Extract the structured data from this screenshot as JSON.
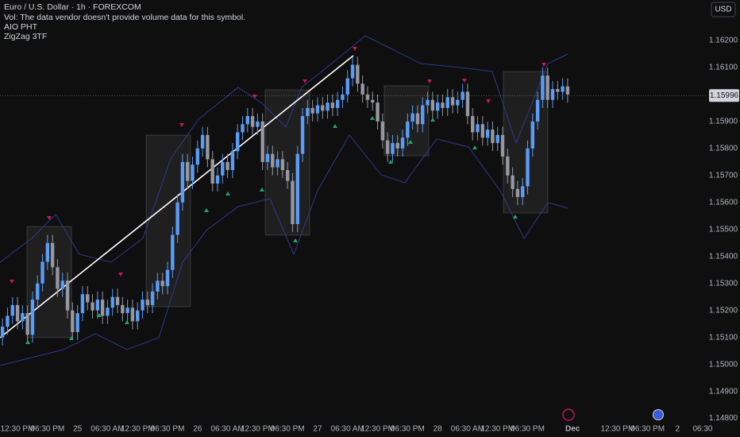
{
  "chart_data": {
    "type": "candlestick",
    "title": "Euro / U.S. Dollar · 1h · FOREXCOM",
    "subtitle": "Vol: The data vendor doesn't provide volume data for this symbol.",
    "indicators": [
      "AIO PHT",
      "ZigZag 3TF"
    ],
    "currency": "USD",
    "up_color": "#5b9cf6",
    "down_color": "#9598a1",
    "open": [
      1.151,
      1.1514,
      1.1518,
      1.1522,
      1.1516,
      1.1519,
      1.1511,
      1.1524,
      1.153,
      1.1538,
      1.1545,
      1.1536,
      1.1528,
      1.1531,
      1.152,
      1.1512,
      1.1519,
      1.1526,
      1.1523,
      1.152,
      1.1524,
      1.1518,
      1.1521,
      1.1525,
      1.1522,
      1.1519,
      1.1521,
      1.1516,
      1.152,
      1.1524,
      1.1522,
      1.1527,
      1.1531,
      1.1529,
      1.1535,
      1.1548,
      1.156,
      1.1575,
      1.1568,
      1.1574,
      1.158,
      1.1585,
      1.1576,
      1.1567,
      1.157,
      1.1575,
      1.1572,
      1.1579,
      1.1586,
      1.1589,
      1.1592,
      1.1588,
      1.159,
      1.1575,
      1.1578,
      1.1573,
      1.1576,
      1.1572,
      1.1568,
      1.1552,
      1.1578,
      1.1592,
      1.1595,
      1.1593,
      1.1596,
      1.1594,
      1.1597,
      1.1595,
      1.1598,
      1.16,
      1.1606,
      1.1611,
      1.1604,
      1.16,
      1.1598,
      1.1597,
      1.159,
      1.1583,
      1.1578,
      1.1582,
      1.158,
      1.1584,
      1.159,
      1.1593,
      1.1589,
      1.1596,
      1.1598,
      1.1594,
      1.1597,
      1.1595,
      1.1599,
      1.1596,
      1.1598,
      1.1601,
      1.1592,
      1.1586,
      1.1589,
      1.1584,
      1.1587,
      1.1582,
      1.1585,
      1.1577,
      1.157,
      1.1565,
      1.1562,
      1.1566,
      1.158,
      1.159,
      1.1598,
      1.1607,
      1.1598,
      1.1602,
      1.1601,
      1.1603
    ],
    "high": [
      1.1517,
      1.1521,
      1.1525,
      1.1525,
      1.1522,
      1.1522,
      1.1527,
      1.1533,
      1.1541,
      1.1548,
      1.1548,
      1.1539,
      1.1534,
      1.1534,
      1.1523,
      1.1522,
      1.1529,
      1.1529,
      1.1526,
      1.1527,
      1.1527,
      1.1524,
      1.1528,
      1.1528,
      1.1525,
      1.1524,
      1.1524,
      1.1523,
      1.1527,
      1.1527,
      1.153,
      1.1534,
      1.1534,
      1.1538,
      1.1551,
      1.1563,
      1.1578,
      1.1578,
      1.1577,
      1.1583,
      1.1588,
      1.1588,
      1.1579,
      1.1573,
      1.1578,
      1.1578,
      1.1582,
      1.1589,
      1.1592,
      1.1595,
      1.1595,
      1.1593,
      1.1593,
      1.1581,
      1.1581,
      1.1579,
      1.1579,
      1.1575,
      1.1571,
      1.1581,
      1.1595,
      1.1598,
      1.1598,
      1.1599,
      1.1599,
      1.16,
      1.16,
      1.1601,
      1.1603,
      1.1609,
      1.1614,
      1.1614,
      1.1607,
      1.1603,
      1.1601,
      1.16,
      1.1593,
      1.1586,
      1.1585,
      1.1585,
      1.1587,
      1.1593,
      1.1596,
      1.1596,
      1.1599,
      1.1601,
      1.1601,
      1.16,
      1.16,
      1.1602,
      1.1602,
      1.1601,
      1.1604,
      1.1604,
      1.1595,
      1.1592,
      1.1592,
      1.159,
      1.159,
      1.1588,
      1.1588,
      1.158,
      1.1573,
      1.1568,
      1.1569,
      1.1583,
      1.1593,
      1.1601,
      1.161,
      1.161,
      1.1605,
      1.1605,
      1.1606,
      1.1606
    ],
    "low": [
      1.1507,
      1.1511,
      1.1515,
      1.1513,
      1.1513,
      1.1508,
      1.1508,
      1.1521,
      1.1527,
      1.1535,
      1.1533,
      1.1525,
      1.1525,
      1.1517,
      1.1509,
      1.1509,
      1.1516,
      1.152,
      1.1517,
      1.1517,
      1.1515,
      1.1515,
      1.1518,
      1.1519,
      1.1516,
      1.1516,
      1.1513,
      1.1513,
      1.1517,
      1.1519,
      1.1519,
      1.1524,
      1.1526,
      1.1526,
      1.1532,
      1.1545,
      1.1557,
      1.1565,
      1.1565,
      1.1571,
      1.1577,
      1.1573,
      1.1564,
      1.1564,
      1.1567,
      1.1569,
      1.1569,
      1.1576,
      1.1583,
      1.1586,
      1.1585,
      1.1585,
      1.1572,
      1.1572,
      1.157,
      1.157,
      1.1569,
      1.1565,
      1.1549,
      1.1549,
      1.1575,
      1.1589,
      1.159,
      1.159,
      1.1591,
      1.1591,
      1.1592,
      1.1592,
      1.1595,
      1.1597,
      1.1603,
      1.1601,
      1.1597,
      1.1595,
      1.1594,
      1.1587,
      1.158,
      1.1575,
      1.1575,
      1.1577,
      1.1577,
      1.1581,
      1.1587,
      1.1586,
      1.1586,
      1.1593,
      1.1591,
      1.1591,
      1.1592,
      1.1592,
      1.1593,
      1.1593,
      1.1595,
      1.1589,
      1.1583,
      1.1583,
      1.1581,
      1.1581,
      1.1579,
      1.1579,
      1.1574,
      1.1567,
      1.1562,
      1.1559,
      1.1559,
      1.1563,
      1.1577,
      1.1587,
      1.1595,
      1.1595,
      1.1595,
      1.1598,
      1.1598,
      1.1597
    ],
    "close": [
      1.1514,
      1.1518,
      1.1522,
      1.1516,
      1.1519,
      1.1511,
      1.1524,
      1.153,
      1.1538,
      1.1545,
      1.1536,
      1.1528,
      1.1531,
      1.152,
      1.1512,
      1.1519,
      1.1526,
      1.1523,
      1.152,
      1.1524,
      1.1518,
      1.1521,
      1.1525,
      1.1522,
      1.1519,
      1.1521,
      1.1516,
      1.152,
      1.1524,
      1.1522,
      1.1527,
      1.1531,
      1.1529,
      1.1535,
      1.1548,
      1.156,
      1.1575,
      1.1568,
      1.1574,
      1.158,
      1.1585,
      1.1576,
      1.1567,
      1.157,
      1.1575,
      1.1572,
      1.1579,
      1.1586,
      1.1589,
      1.1592,
      1.1588,
      1.159,
      1.1575,
      1.1578,
      1.1573,
      1.1576,
      1.1572,
      1.1568,
      1.1552,
      1.1578,
      1.1592,
      1.1595,
      1.1593,
      1.1596,
      1.1594,
      1.1597,
      1.1595,
      1.1598,
      1.16,
      1.1606,
      1.1611,
      1.1604,
      1.16,
      1.1598,
      1.1597,
      1.159,
      1.1583,
      1.1578,
      1.1582,
      1.158,
      1.1584,
      1.159,
      1.1593,
      1.1589,
      1.1596,
      1.1598,
      1.1594,
      1.1597,
      1.1595,
      1.1599,
      1.1596,
      1.1598,
      1.1601,
      1.1592,
      1.1586,
      1.1589,
      1.1584,
      1.1587,
      1.1582,
      1.1585,
      1.1577,
      1.157,
      1.1565,
      1.1562,
      1.1566,
      1.158,
      1.159,
      1.1598,
      1.1607,
      1.1598,
      1.1602,
      1.1601,
      1.1603,
      1.16
    ],
    "xlim": [
      -0.5,
      140.8
    ],
    "xticks": [
      {
        "value": 3,
        "label": "12:30 PM"
      },
      {
        "value": 9,
        "label": "06:30 PM"
      },
      {
        "value": 15,
        "label": "25"
      },
      {
        "value": 21,
        "label": "06:30 AM"
      },
      {
        "value": 27,
        "label": "12:30 PM"
      },
      {
        "value": 33,
        "label": "06:30 PM"
      },
      {
        "value": 39,
        "label": "26"
      },
      {
        "value": 45,
        "label": "06:30 AM"
      },
      {
        "value": 51,
        "label": "12:30 PM"
      },
      {
        "value": 57,
        "label": "06:30 PM"
      },
      {
        "value": 63,
        "label": "27"
      },
      {
        "value": 69,
        "label": "06:30 AM"
      },
      {
        "value": 75,
        "label": "12:30 PM"
      },
      {
        "value": 81,
        "label": "06:30 PM"
      },
      {
        "value": 87,
        "label": "28"
      },
      {
        "value": 93,
        "label": "06:30 AM"
      },
      {
        "value": 99,
        "label": "12:30 PM"
      },
      {
        "value": 105,
        "label": "06:30 PM"
      },
      {
        "value": 114,
        "label": "Dec"
      },
      {
        "value": 123,
        "label": "12:30 PM"
      },
      {
        "value": 129,
        "label": "06:30 PM"
      },
      {
        "value": 135,
        "label": "2"
      },
      {
        "value": 140,
        "label": "06:30"
      }
    ],
    "ylim": [
      1.1479,
      1.1635
    ],
    "yticks": [
      {
        "value": 1.162,
        "label": "1.16200"
      },
      {
        "value": 1.161,
        "label": "1.16100"
      },
      {
        "value": 1.159,
        "label": "1.15900"
      },
      {
        "value": 1.158,
        "label": "1.15800"
      },
      {
        "value": 1.157,
        "label": "1.15700"
      },
      {
        "value": 1.156,
        "label": "1.15600"
      },
      {
        "value": 1.155,
        "label": "1.15500"
      },
      {
        "value": 1.154,
        "label": "1.15400"
      },
      {
        "value": 1.153,
        "label": "1.15300"
      },
      {
        "value": 1.152,
        "label": "1.15200"
      },
      {
        "value": 1.151,
        "label": "1.15100"
      },
      {
        "value": 1.15,
        "label": "1.15000"
      },
      {
        "value": 1.149,
        "label": "1.14900"
      },
      {
        "value": 1.148,
        "label": "1.14800"
      }
    ],
    "last_price": {
      "value": 1.15996,
      "label": "1.15996"
    }
  }
}
